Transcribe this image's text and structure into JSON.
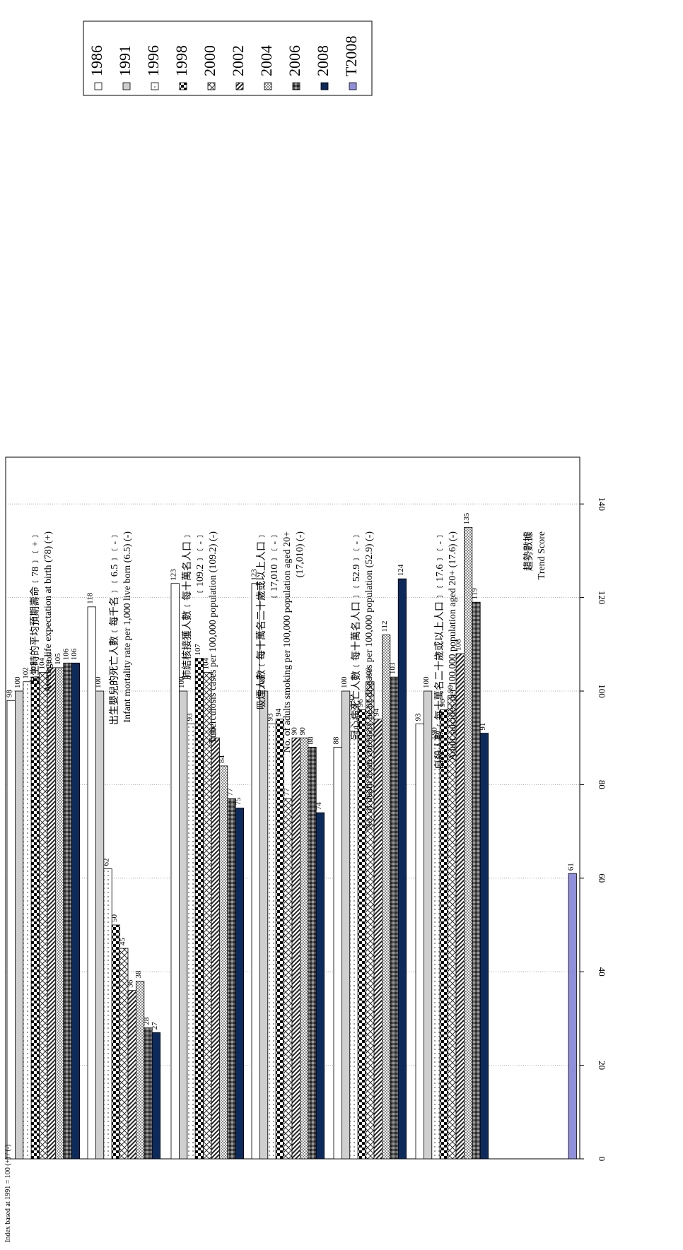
{
  "chart_data": {
    "type": "bar",
    "orientation": "rotated-90",
    "note": "Index based at 1991 = 100 (+) / (-)",
    "axis": {
      "min": 0,
      "max": 150,
      "ticks": [
        0,
        20,
        40,
        60,
        80,
        100,
        120,
        140
      ]
    },
    "grid": true,
    "legend_position": "top-right",
    "series": [
      {
        "name": "1986",
        "pattern": "white",
        "values": [
          98,
          118,
          123,
          123,
          88,
          93,
          null
        ]
      },
      {
        "name": "1991",
        "pattern": "gray",
        "values": [
          100,
          100,
          100,
          100,
          100,
          100,
          null
        ]
      },
      {
        "name": "1996",
        "pattern": "dots",
        "values": [
          102,
          62,
          93,
          93,
          97,
          90,
          null
        ]
      },
      {
        "name": "1998",
        "pattern": "checker",
        "values": [
          103,
          50,
          107,
          94,
          96,
          96,
          null
        ]
      },
      {
        "name": "2000",
        "pattern": "cross",
        "values": [
          104,
          45,
          104,
          77,
          102,
          99,
          null
        ]
      },
      {
        "name": "2002",
        "pattern": "diagonal",
        "values": [
          105,
          36,
          90,
          90,
          94,
          108,
          null
        ]
      },
      {
        "name": "2004",
        "pattern": "dotgray",
        "values": [
          105,
          38,
          84,
          90,
          112,
          135,
          null
        ]
      },
      {
        "name": "2006",
        "pattern": "darkcheck",
        "values": [
          106,
          28,
          77,
          88,
          103,
          119,
          null
        ]
      },
      {
        "name": "2008",
        "pattern": "navy",
        "values": [
          106,
          27,
          75,
          74,
          124,
          91,
          null
        ]
      },
      {
        "name": "T2008",
        "pattern": "periwinkle",
        "values": [
          null,
          null,
          null,
          null,
          null,
          null,
          61
        ]
      }
    ],
    "categories": [
      {
        "lines": [
          "出生時的平均預期壽命﹝78﹞﹝+﹞",
          "Average life expectation at birth (78) (+)"
        ]
      },
      {
        "lines": [
          "出生嬰兒的死亡人數﹝每千名﹞﹝6.5﹞﹝-﹞",
          "Infant mortality rate per 1,000 live born (6.5) (-)"
        ]
      },
      {
        "lines": [
          "肺結核接獲人數﹝每十萬名人口﹞",
          "﹝109.2﹞﹝-﹞",
          "Tuberculosis cases per 100,000 population (109.2) (-)"
        ]
      },
      {
        "lines": [
          "吸煙人數﹝每十萬名二十歲或以上人口﹞",
          "﹝17,010﹞﹝-﹞",
          "No. of adults smoking per 100,000 population aged 20+",
          "(17,010) (-)"
        ]
      },
      {
        "lines": [
          "冠心病死亡人數﹝每十萬名人口﹞﹝52.9﹞﹝-﹞",
          "No. of death from coronary heart diseases per 100,000 population (52.9) (-)"
        ]
      },
      {
        "lines": [
          "自殺人數﹝每十萬名二十歲或以上人口﹞﹝17.6﹞﹝-﹞",
          "Adult suicides per 100,000 population aged 20+ (17.6) (-)"
        ]
      },
      {
        "lines": [
          "趨勢數據",
          "Trend Score"
        ]
      }
    ]
  }
}
